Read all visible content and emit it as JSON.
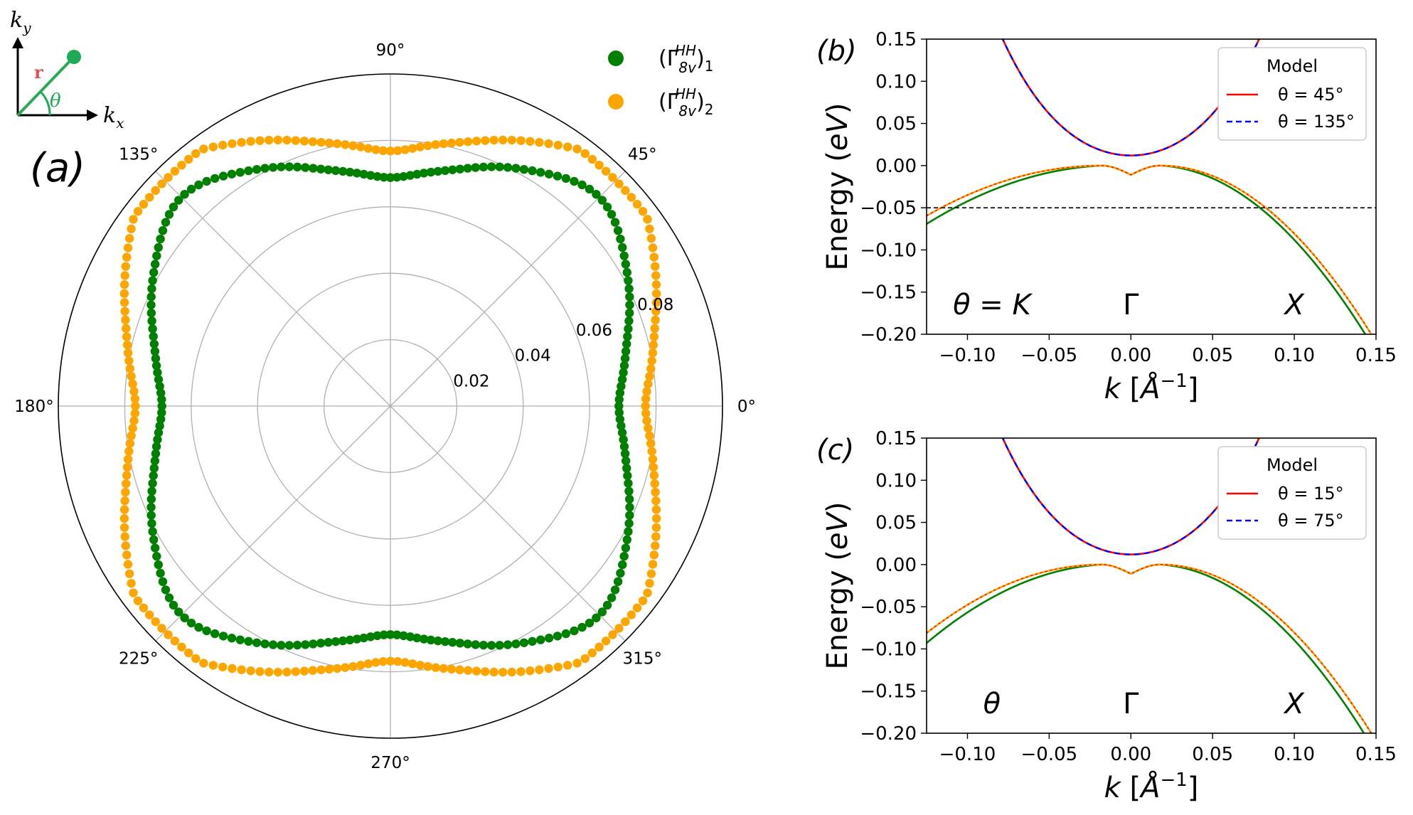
{
  "chart_data": [
    {
      "type": "scatter",
      "projection": "polar",
      "panel_label": "(a)",
      "radial_ticks": [
        "0.02",
        "0.04",
        "0.06",
        "0.08"
      ],
      "radial_tick_values": [
        0.02,
        0.04,
        0.06,
        0.08
      ],
      "rmax": 0.1,
      "angle_ticks": [
        "0°",
        "45°",
        "90°",
        "135°",
        "180°",
        "225°",
        "270°",
        "315°"
      ],
      "angle_tick_values": [
        0,
        45,
        90,
        135,
        180,
        225,
        270,
        315
      ],
      "series": [
        {
          "name": "(Γ8v^HH)1",
          "color": "#008000",
          "r_axis": 0.0706,
          "r_diag": 0.0892,
          "r_mid": 0.0688,
          "r_peak": 0.0734
        },
        {
          "name": "(Γ8v^HH)2",
          "color": "#ffa500",
          "r_axis": 0.079,
          "r_diag": 0.096,
          "r_mid": 0.0768,
          "r_peak": 0.0812
        }
      ],
      "legend": {
        "entries": [
          {
            "base": "(Γ",
            "sup": "HH",
            "sub": "8v",
            "tail": ")",
            "idx": "1",
            "color": "#008000"
          },
          {
            "base": "(Γ",
            "sup": "HH",
            "sub": "8v",
            "tail": ")",
            "idx": "2",
            "color": "#ffa500"
          }
        ]
      },
      "inset": {
        "ky": "k",
        "ky_sub": "y",
        "kx": "k",
        "kx_sub": "x",
        "r": "r",
        "theta": "θ"
      }
    },
    {
      "type": "line",
      "panel_label": "(b)",
      "xlabel": "k [Å⁻¹]",
      "ylabel": "Energy (eV)",
      "xlim": [
        -0.125,
        0.15
      ],
      "ylim": [
        -0.2,
        0.15
      ],
      "xticks": [
        -0.1,
        -0.05,
        0.0,
        0.05,
        0.1,
        0.15
      ],
      "xtick_labels": [
        "−0.10",
        "−0.05",
        "0.00",
        "0.05",
        "0.10",
        "0.15"
      ],
      "yticks": [
        0.15,
        0.1,
        0.05,
        0.0,
        -0.05,
        -0.1,
        -0.15,
        -0.2
      ],
      "ytick_labels": [
        "0.15",
        "0.10",
        "0.05",
        "0.00",
        "−0.05",
        "−0.10",
        "−0.15",
        "−0.20"
      ],
      "hline": -0.05,
      "annotations": [
        "θ = K",
        "Γ",
        "X"
      ],
      "legend": {
        "title": "Model",
        "entries": [
          "θ = 45°",
          "θ = 135°"
        ]
      },
      "series": [
        {
          "name": "conduction θ=45°",
          "color": "#ff0000",
          "dash": false
        },
        {
          "name": "conduction θ=135°",
          "color": "#0000ff",
          "dash": true
        },
        {
          "name": "valence green",
          "color": "#008000"
        },
        {
          "name": "valence orange",
          "color": "#ffa500"
        }
      ]
    },
    {
      "type": "line",
      "panel_label": "(c)",
      "xlabel": "k [Å⁻¹]",
      "ylabel": "Energy (eV)",
      "xlim": [
        -0.125,
        0.15
      ],
      "ylim": [
        -0.2,
        0.15
      ],
      "xticks": [
        -0.1,
        -0.05,
        0.0,
        0.05,
        0.1,
        0.15
      ],
      "xtick_labels": [
        "−0.10",
        "−0.05",
        "0.00",
        "0.05",
        "0.10",
        "0.15"
      ],
      "yticks": [
        0.15,
        0.1,
        0.05,
        0.0,
        -0.05,
        -0.1,
        -0.15,
        -0.2
      ],
      "ytick_labels": [
        "0.15",
        "0.10",
        "0.05",
        "0.00",
        "−0.05",
        "−0.10",
        "−0.15",
        "−0.20"
      ],
      "annotations": [
        "θ",
        "Γ",
        "X"
      ],
      "legend": {
        "title": "Model",
        "entries": [
          "θ = 15°",
          "θ = 75°"
        ]
      },
      "series": [
        {
          "name": "conduction θ=15°",
          "color": "#ff0000",
          "dash": false
        },
        {
          "name": "conduction θ=75°",
          "color": "#0000ff",
          "dash": true
        },
        {
          "name": "valence green",
          "color": "#008000"
        },
        {
          "name": "valence orange",
          "color": "#ffa500"
        }
      ]
    }
  ]
}
